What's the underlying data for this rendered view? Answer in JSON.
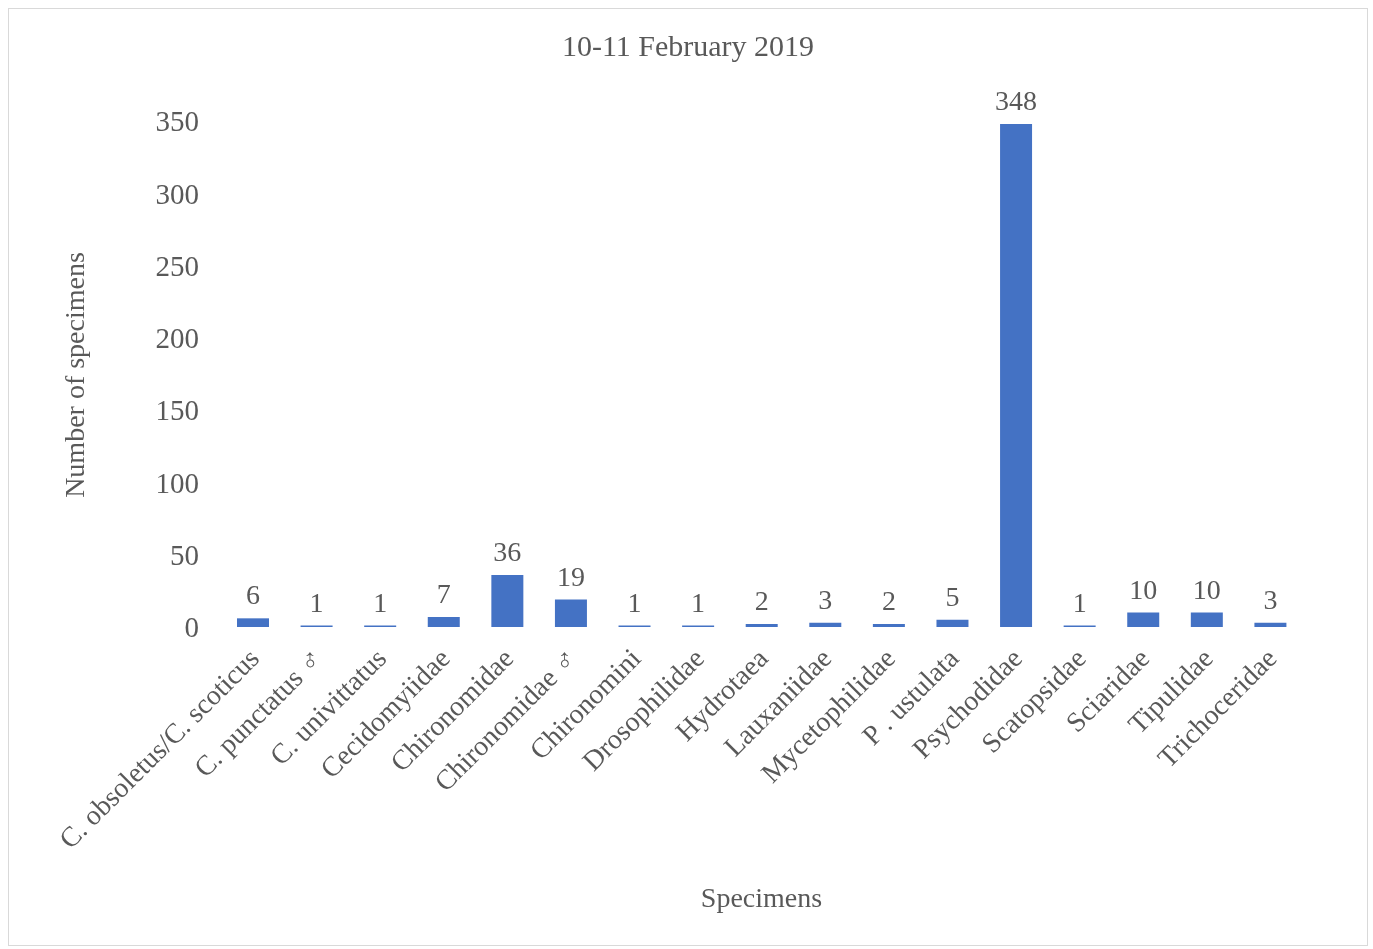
{
  "chart_data": {
    "type": "bar",
    "title": "10-11 February 2019",
    "xlabel": "Specimens",
    "ylabel": "Number of specimens",
    "categories": [
      "C. obsoletus/C. scoticus",
      "C. punctatus ♂",
      "C. univittatus",
      "Cecidomyiidae",
      "Chironomidae",
      "Chironomidae ♂",
      "Chironomini",
      "Drosophilidae",
      "Hydrotaea",
      "Lauxaniidae",
      "Mycetophilidae",
      "P . ustulata",
      "Psychodidae",
      "Scatopsidae",
      "Sciaridae",
      "Tipulidae",
      "Trichoceridae"
    ],
    "values": [
      6,
      1,
      1,
      7,
      36,
      19,
      1,
      1,
      2,
      3,
      2,
      5,
      348,
      1,
      10,
      10,
      3
    ],
    "color": "#4472c4",
    "ylim": [
      0,
      350
    ],
    "yticks": [
      0,
      50,
      100,
      150,
      200,
      250,
      300,
      350
    ],
    "data_labels": true
  }
}
